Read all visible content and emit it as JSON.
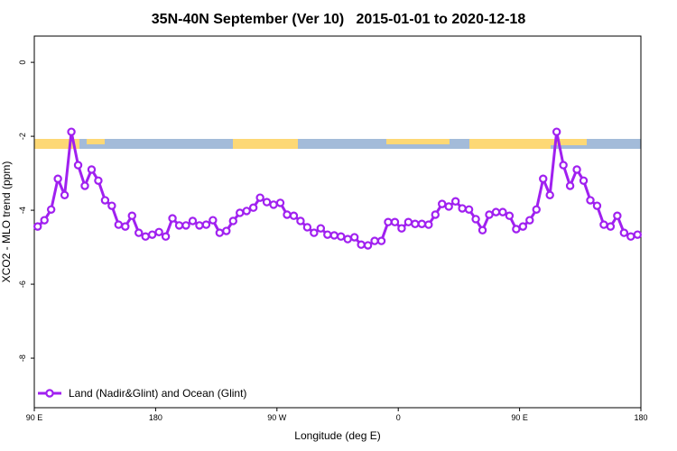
{
  "chart_data": {
    "type": "line",
    "title": "35N-40N September (Ver 10)   2015-01-01 to 2020-12-18",
    "x_label": "Longitude (deg E)",
    "y_label": "XCO2 - MLO trend (ppm)",
    "xlim": [
      90,
      540
    ],
    "xticks": [
      {
        "value": 90,
        "label": "90 E"
      },
      {
        "value": 180,
        "label": "180"
      },
      {
        "value": 270,
        "label": "90 W"
      },
      {
        "value": 360,
        "label": "0"
      },
      {
        "value": 450,
        "label": "90 E"
      },
      {
        "value": 540,
        "label": "180"
      }
    ],
    "ylim": [
      -9.34,
      0.71
    ],
    "yticks": [
      0,
      -2,
      -4,
      -6,
      -8
    ],
    "legend_position": "bottom-left",
    "x": [
      92.5,
      97.5,
      102.5,
      107.5,
      112.5,
      117.5,
      122.5,
      127.5,
      132.5,
      137.5,
      142.5,
      147.5,
      152.5,
      157.5,
      162.5,
      167.5,
      172.5,
      177.5,
      182.5,
      187.5,
      192.5,
      197.5,
      202.5,
      207.5,
      212.5,
      217.5,
      222.5,
      227.5,
      232.5,
      237.5,
      242.5,
      247.5,
      252.5,
      257.5,
      262.5,
      267.5,
      272.5,
      277.5,
      282.5,
      287.5,
      292.5,
      297.5,
      302.5,
      307.5,
      312.5,
      317.5,
      322.5,
      327.5,
      332.5,
      337.5,
      342.5,
      347.5,
      352.5,
      357.5,
      362.5,
      367.5,
      372.5,
      377.5,
      382.5,
      387.5,
      392.5,
      397.5,
      402.5,
      407.5,
      412.5,
      417.5,
      422.5,
      427.5,
      432.5,
      437.5,
      442.5,
      447.5,
      452.5,
      457.5,
      462.5,
      467.5,
      472.5,
      477.5,
      482.5,
      487.5,
      492.5,
      497.5,
      502.5,
      507.5,
      512.5,
      517.5,
      522.5,
      527.5,
      532.5,
      537.5
    ],
    "series": [
      {
        "name": "Land (Nadir&Glint) and Ocean (Glint)",
        "color": "#a020f0",
        "values": [
          -4.44,
          -4.27,
          -3.98,
          -3.15,
          -3.59,
          -1.88,
          -2.78,
          -3.34,
          -2.9,
          -3.2,
          -3.73,
          -3.88,
          -4.39,
          -4.44,
          -4.15,
          -4.61,
          -4.71,
          -4.66,
          -4.59,
          -4.71,
          -4.22,
          -4.41,
          -4.41,
          -4.29,
          -4.41,
          -4.39,
          -4.27,
          -4.61,
          -4.56,
          -4.29,
          -4.07,
          -4.02,
          -3.93,
          -3.66,
          -3.78,
          -3.85,
          -3.8,
          -4.12,
          -4.15,
          -4.29,
          -4.46,
          -4.61,
          -4.49,
          -4.66,
          -4.68,
          -4.71,
          -4.78,
          -4.73,
          -4.93,
          -4.95,
          -4.83,
          -4.83,
          -4.32,
          -4.32,
          -4.49,
          -4.32,
          -4.37,
          -4.37,
          -4.39,
          -4.12,
          -3.83,
          -3.9,
          -3.76,
          -3.95,
          -3.98,
          -4.24,
          -4.54,
          -4.12,
          -4.05,
          -4.05,
          -4.15,
          -4.51,
          -4.44,
          -4.27,
          -3.98,
          -3.15,
          -3.59,
          -1.88,
          -2.78,
          -3.34,
          -2.9,
          -3.2,
          -3.73,
          -3.88,
          -4.39,
          -4.44,
          -4.15,
          -4.61,
          -4.71,
          -4.66
        ]
      }
    ]
  }
}
